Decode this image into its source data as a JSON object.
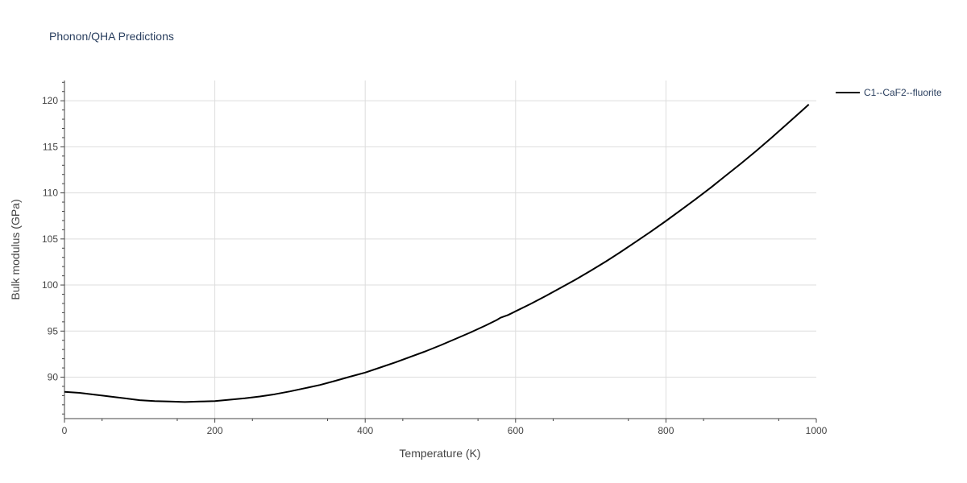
{
  "chart_data": {
    "type": "line",
    "title": "Phonon/QHA Predictions",
    "xlabel": "Temperature (K)",
    "ylabel": "Bulk modulus (GPa)",
    "xlim": [
      0,
      1000
    ],
    "ylim": [
      85.5,
      122.2
    ],
    "x_ticks": [
      0,
      200,
      400,
      600,
      800,
      1000
    ],
    "y_ticks": [
      90,
      95,
      100,
      105,
      110,
      115,
      120
    ],
    "grid": true,
    "legend_position": "top-right",
    "series": [
      {
        "name": "C1--CaF2--fluorite",
        "color": "#000000",
        "x": [
          0,
          20,
          40,
          60,
          80,
          100,
          120,
          140,
          160,
          180,
          200,
          220,
          240,
          260,
          280,
          300,
          320,
          340,
          360,
          380,
          400,
          420,
          440,
          460,
          480,
          500,
          520,
          540,
          560,
          575,
          580,
          590,
          600,
          620,
          640,
          660,
          680,
          700,
          720,
          740,
          760,
          780,
          800,
          820,
          840,
          860,
          880,
          900,
          920,
          940,
          960,
          980,
          990
        ],
        "y": [
          88.4,
          88.3,
          88.1,
          87.9,
          87.7,
          87.5,
          87.4,
          87.35,
          87.3,
          87.35,
          87.4,
          87.55,
          87.7,
          87.9,
          88.15,
          88.45,
          88.8,
          89.15,
          89.6,
          90.05,
          90.5,
          91.05,
          91.6,
          92.2,
          92.8,
          93.45,
          94.15,
          94.85,
          95.6,
          96.2,
          96.45,
          96.75,
          97.15,
          97.95,
          98.8,
          99.7,
          100.6,
          101.55,
          102.55,
          103.6,
          104.7,
          105.8,
          106.95,
          108.15,
          109.35,
          110.6,
          111.9,
          113.2,
          114.55,
          115.95,
          117.4,
          118.85,
          119.6
        ]
      }
    ]
  }
}
